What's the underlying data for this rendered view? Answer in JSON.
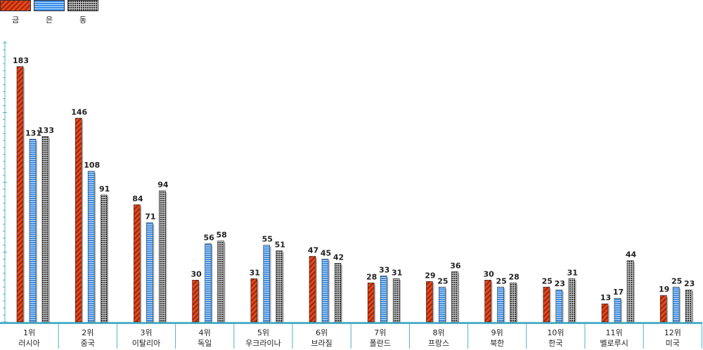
{
  "chart_data": {
    "type": "bar",
    "categories": [
      {
        "rank": "1위",
        "country": "러시아"
      },
      {
        "rank": "2위",
        "country": "중국"
      },
      {
        "rank": "3위",
        "country": "이탈리아"
      },
      {
        "rank": "4위",
        "country": "독일"
      },
      {
        "rank": "5위",
        "country": "우크라이나"
      },
      {
        "rank": "6위",
        "country": "브라질"
      },
      {
        "rank": "7위",
        "country": "폴란드"
      },
      {
        "rank": "8위",
        "country": "프랑스"
      },
      {
        "rank": "9위",
        "country": "북한"
      },
      {
        "rank": "10위",
        "country": "한국"
      },
      {
        "rank": "11위",
        "country": "벨로루시"
      },
      {
        "rank": "12위",
        "country": "미국"
      }
    ],
    "series": [
      {
        "name": "금",
        "color": "#e8451f",
        "values": [
          183,
          146,
          84,
          30,
          31,
          47,
          28,
          29,
          30,
          25,
          13,
          19
        ]
      },
      {
        "name": "은",
        "color": "#3d8fe6",
        "values": [
          131,
          108,
          71,
          56,
          55,
          45,
          33,
          25,
          25,
          23,
          17,
          25
        ]
      },
      {
        "name": "동",
        "color": "#555555",
        "values": [
          133,
          91,
          94,
          58,
          51,
          42,
          31,
          36,
          28,
          31,
          44,
          23
        ]
      }
    ],
    "ylim": [
      0,
      200
    ],
    "legend_position": "top-left",
    "grid": false
  }
}
